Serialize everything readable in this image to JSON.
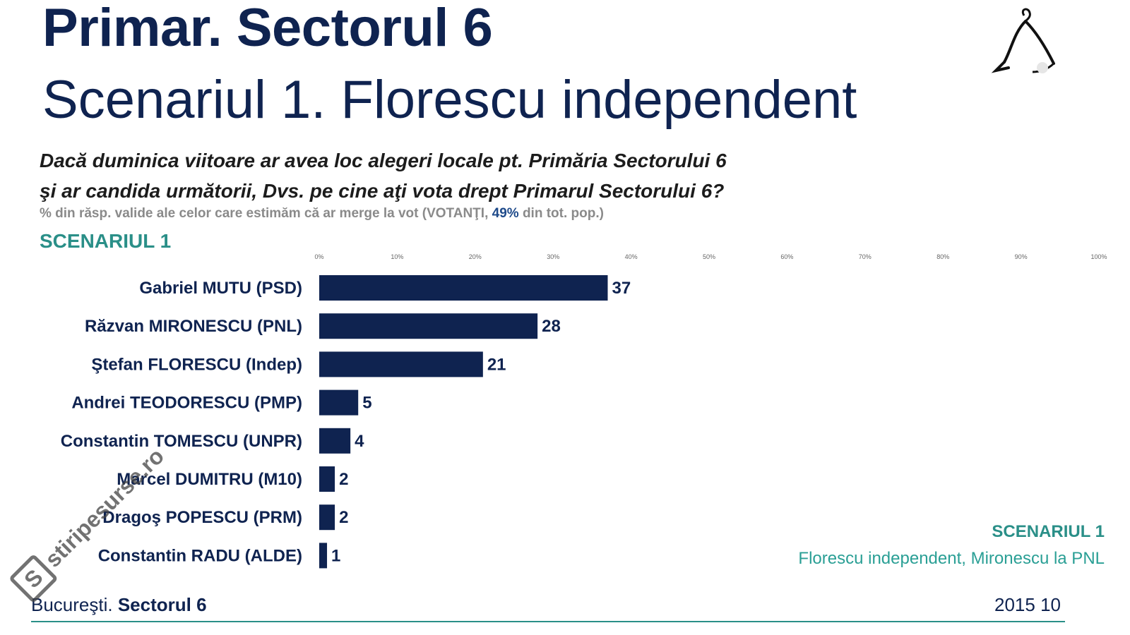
{
  "title": "Primar. Sectorul 6",
  "subtitle": "Scenariul 1. Florescu independent",
  "question_line1": "Dacă duminica viitoare ar avea loc alegeri locale pt. Primăria Sectorului 6",
  "question_line2": "şi ar candida următorii, Dvs. pe cine aţi vota drept Primarul Sectorului 6?",
  "note_prefix": "% din răsp. valide ale celor care estimăm că ar merge la vot (VOTANŢI, ",
  "note_highlight": "49%",
  "note_suffix": " din tot. pop.)",
  "scenario_label": "SCENARIUL 1",
  "side_scenario": "SCENARIUL 1",
  "side_description": "Florescu independent, Mironescu la PNL",
  "footer_city": "Bucureşti.",
  "footer_sector": "Sectorul 6",
  "footer_date": "2015 10",
  "watermark_text": "stiripesurse.ro",
  "watermark_badge": "S",
  "colors": {
    "bar": "#0f2350",
    "title": "#0f2350",
    "accent": "#2a8f88"
  },
  "chart_data": {
    "type": "bar",
    "orientation": "horizontal",
    "categories": [
      "Gabriel MUTU (PSD)",
      "Răzvan MIRONESCU (PNL)",
      "Ştefan FLORESCU (Indep)",
      "Andrei TEODORESCU (PMP)",
      "Constantin TOMESCU (UNPR)",
      "Marcel DUMITRU (M10)",
      "Dragoş POPESCU (PRM)",
      "Constantin RADU (ALDE)"
    ],
    "values": [
      37,
      28,
      21,
      5,
      4,
      2,
      2,
      1
    ],
    "xlim": [
      0,
      100
    ],
    "x_ticks": [
      "0%",
      "10%",
      "20%",
      "30%",
      "40%",
      "50%",
      "60%",
      "70%",
      "80%",
      "90%",
      "100%"
    ],
    "title": "SCENARIUL 1",
    "grid": false
  }
}
